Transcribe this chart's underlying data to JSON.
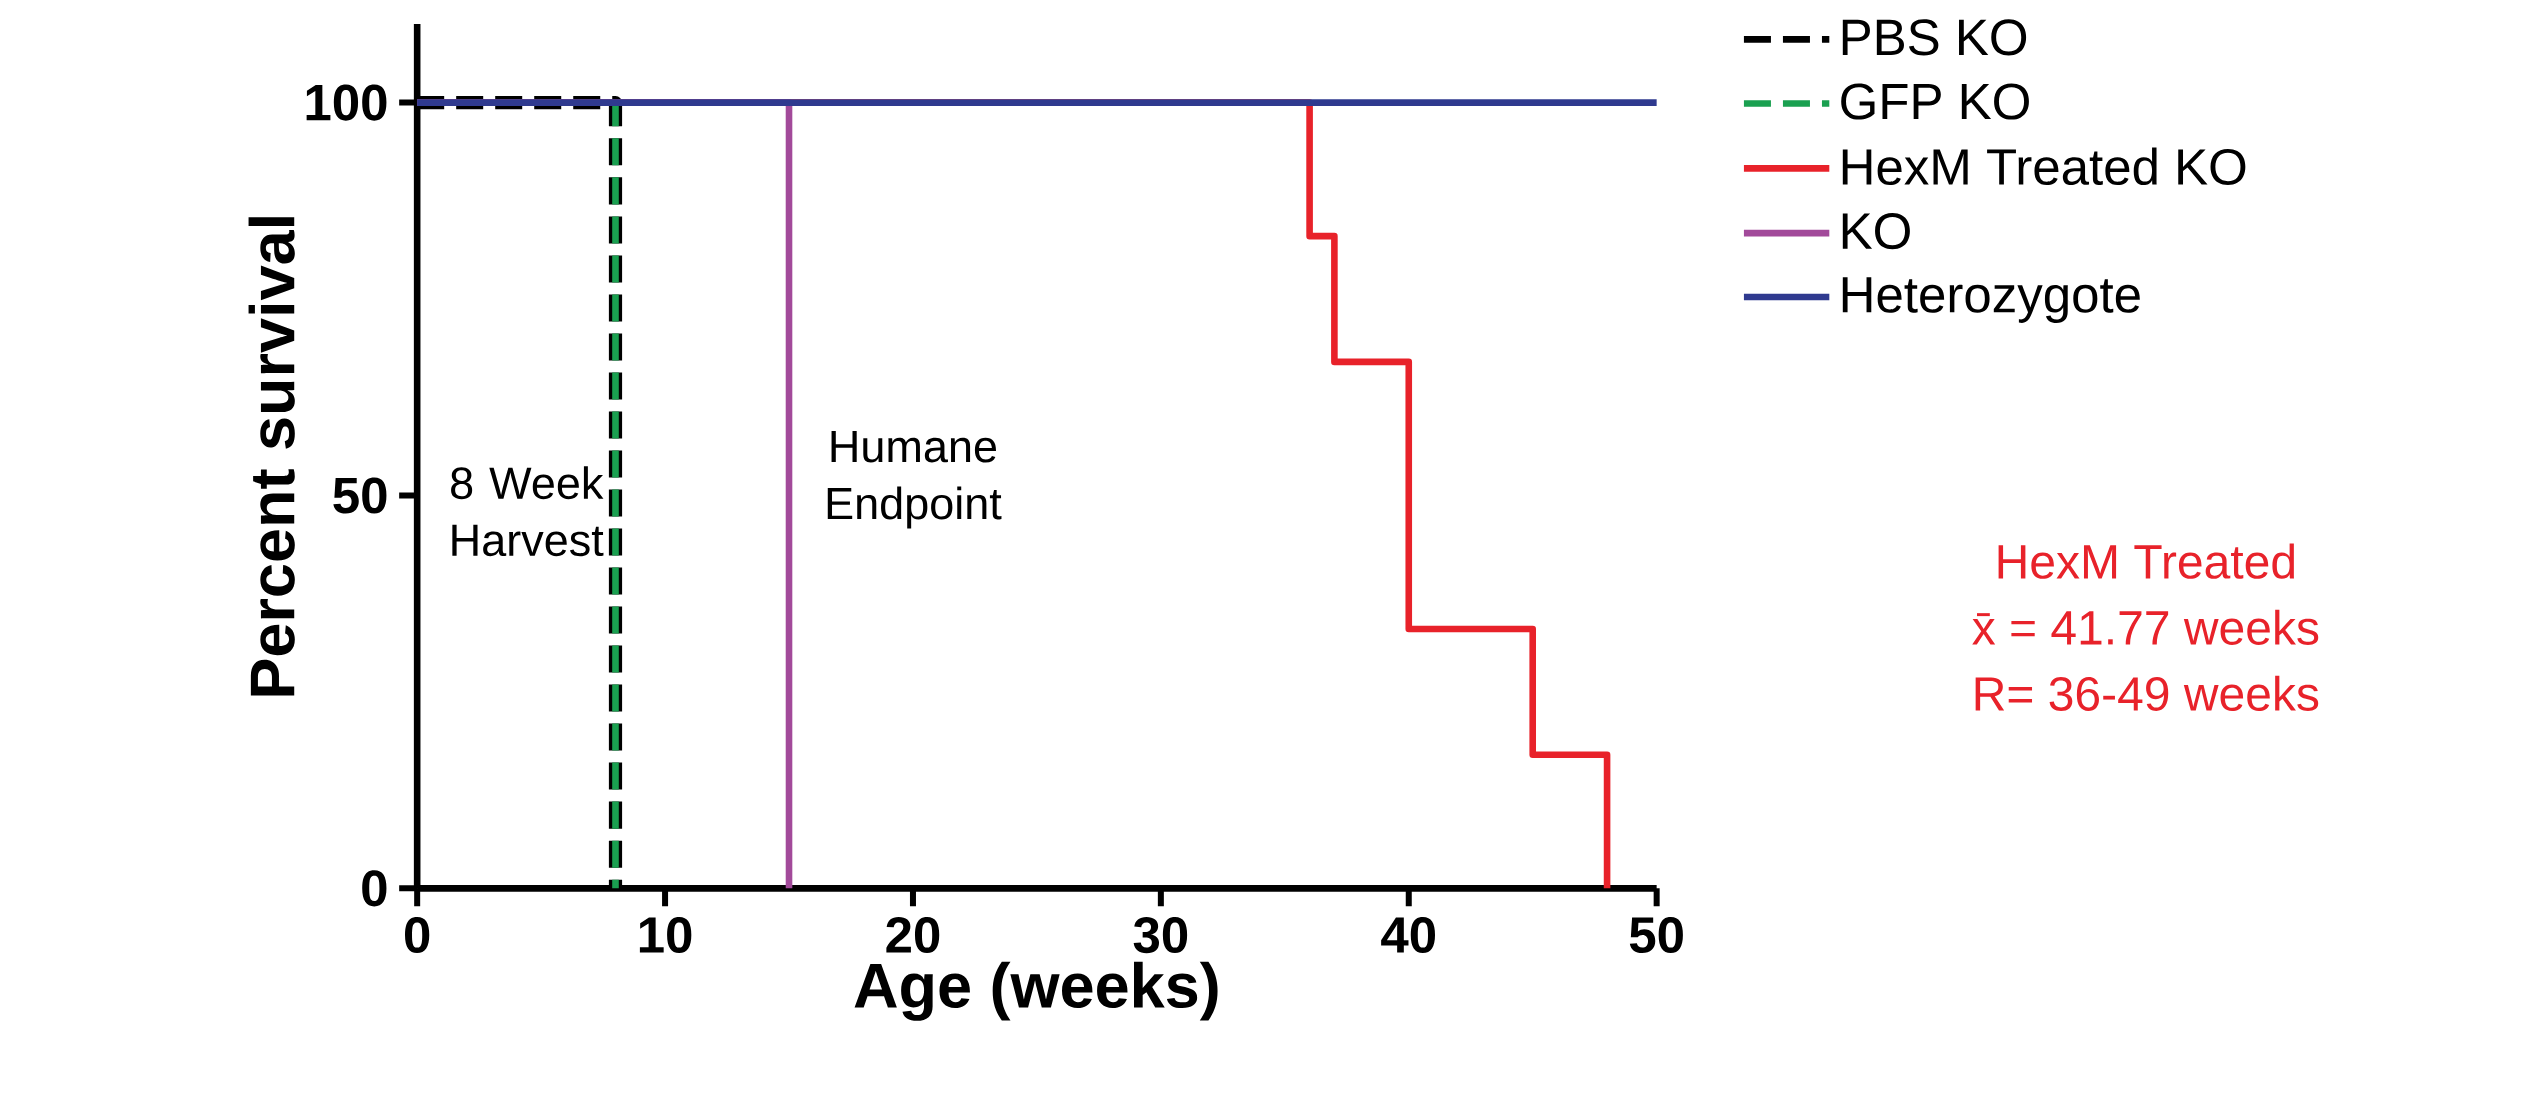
{
  "chart_data": {
    "type": "step",
    "xlabel": "Age (weeks)",
    "ylabel": "Percent survival",
    "xlim": [
      0,
      50
    ],
    "ylim": [
      0,
      110
    ],
    "xticks": [
      0,
      10,
      20,
      30,
      40,
      50
    ],
    "yticks": [
      0,
      50,
      100
    ],
    "legend": "right",
    "grid": false,
    "series": [
      {
        "name": "PBS KO",
        "color": "#000000",
        "line_style": "dashed",
        "x": [
          0,
          8
        ],
        "values": [
          100,
          0
        ]
      },
      {
        "name": "GFP KO",
        "color": "#1aa050",
        "line_style": "dashed",
        "x": [
          0,
          8
        ],
        "values": [
          100,
          0
        ]
      },
      {
        "name": "HexM Treated KO",
        "color": "#e8222a",
        "line_style": "solid",
        "x": [
          0,
          36,
          37,
          40,
          45,
          48
        ],
        "values": [
          100,
          83,
          67,
          33,
          17,
          0
        ]
      },
      {
        "name": "KO",
        "color": "#a24a9a",
        "line_style": "solid",
        "x": [
          0,
          15
        ],
        "values": [
          100,
          0
        ]
      },
      {
        "name": "Heterozygote",
        "color": "#2f3a8f",
        "line_style": "solid",
        "x": [
          0,
          50
        ],
        "values": [
          100,
          100
        ]
      }
    ],
    "annotations": [
      "8 Week Harvest",
      "Humane Endpoint",
      "HexM Treated",
      "x̄ = 41.77 weeks",
      "R= 36-49 weeks"
    ]
  }
}
